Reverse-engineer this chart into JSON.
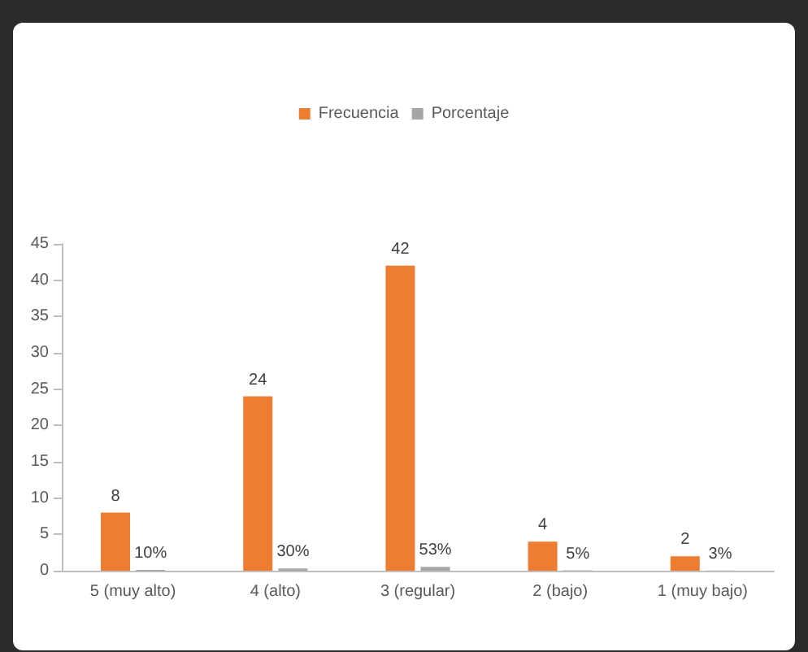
{
  "chart_data": {
    "type": "bar",
    "categories": [
      "5 (muy alto)",
      "4 (alto)",
      "3 (regular)",
      "2 (bajo)",
      "1 (muy bajo)"
    ],
    "series": [
      {
        "name": "Frecuencia",
        "color": "#ed7d31",
        "values": [
          8,
          24,
          42,
          4,
          2
        ],
        "value_labels": [
          "8",
          "24",
          "42",
          "4",
          "2"
        ]
      },
      {
        "name": "Porcentaje",
        "color": "#a5a5a5",
        "values": [
          0.1,
          0.3,
          0.53,
          0.05,
          0.03
        ],
        "value_labels": [
          "10%",
          "30%",
          "53%",
          "5%",
          "3%"
        ]
      }
    ],
    "ylim": [
      0,
      45
    ],
    "yticks": [
      0,
      5,
      10,
      15,
      20,
      25,
      30,
      35,
      40,
      45
    ],
    "grid": false,
    "legend": "top"
  }
}
